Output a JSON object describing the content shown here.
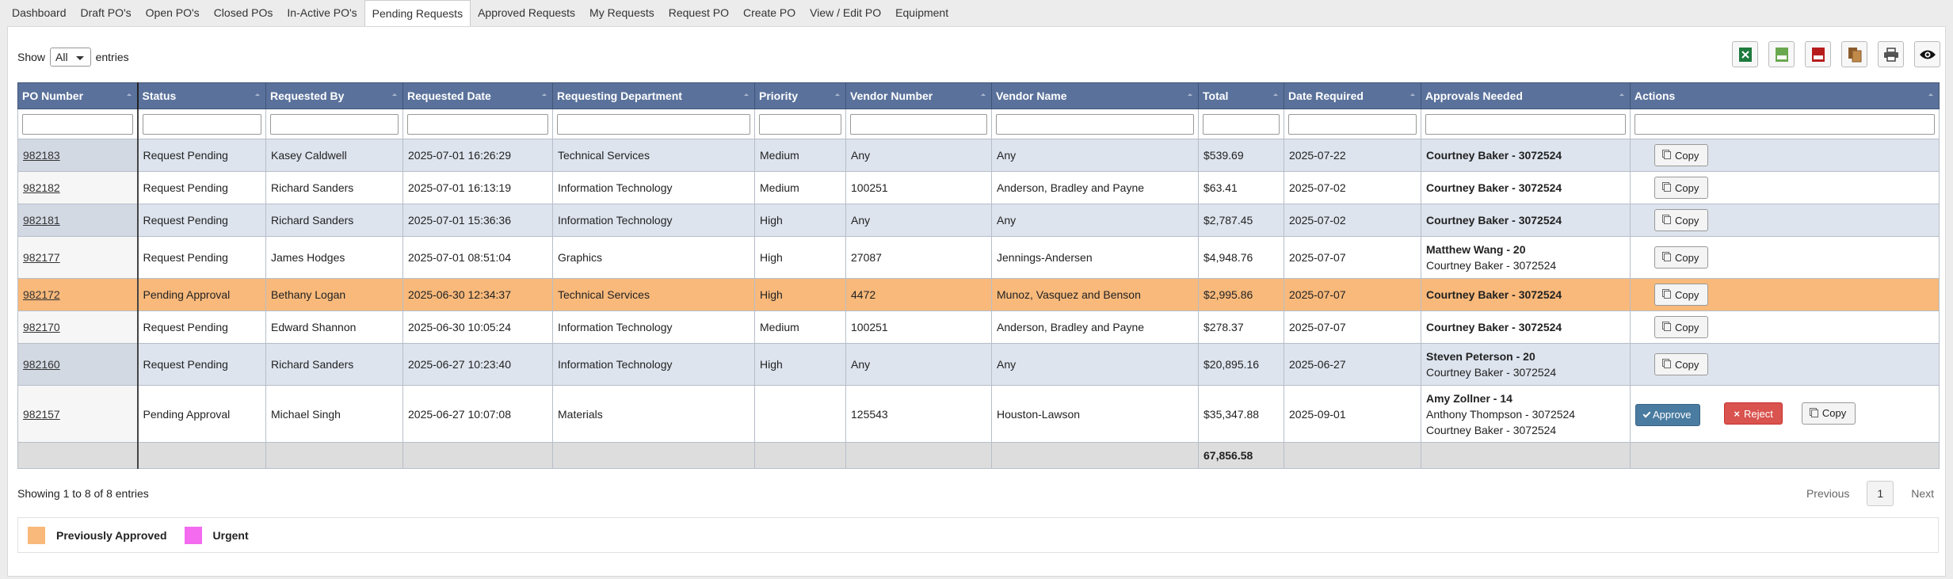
{
  "tabs": [
    "Dashboard",
    "Draft PO's",
    "Open PO's",
    "Closed POs",
    "In-Active PO's",
    "Pending Requests",
    "Approved Requests",
    "My Requests",
    "Request PO",
    "Create PO",
    "View / Edit PO",
    "Equipment"
  ],
  "active_tab": 5,
  "length_menu": {
    "prefix": "Show",
    "value": "All",
    "suffix": "entries"
  },
  "table": {
    "columns": [
      "PO Number",
      "Status",
      "Requested By",
      "Requested Date",
      "Requesting Department",
      "Priority",
      "Vendor Number",
      "Vendor Name",
      "Total",
      "Date Required",
      "Approvals Needed",
      "Actions"
    ],
    "rows": [
      {
        "cells": [
          "982183",
          "Request Pending",
          "Kasey Caldwell",
          "2025-07-01 16:26:29",
          "Technical Services",
          "Medium",
          "Any",
          "Any",
          "$539.69",
          "2025-07-22"
        ],
        "approvals": [
          {
            "text": "Courtney Baker - 3072524",
            "bold": true
          }
        ],
        "actions": [
          "Copy"
        ]
      },
      {
        "cells": [
          "982182",
          "Request Pending",
          "Richard Sanders",
          "2025-07-01 16:13:19",
          "Information Technology",
          "Medium",
          "100251",
          "Anderson, Bradley and Payne",
          "$63.41",
          "2025-07-02"
        ],
        "approvals": [
          {
            "text": "Courtney Baker - 3072524",
            "bold": true
          }
        ],
        "actions": [
          "Copy"
        ]
      },
      {
        "cells": [
          "982181",
          "Request Pending",
          "Richard Sanders",
          "2025-07-01 15:36:36",
          "Information Technology",
          "High",
          "Any",
          "Any",
          "$2,787.45",
          "2025-07-02"
        ],
        "approvals": [
          {
            "text": "Courtney Baker - 3072524",
            "bold": true
          }
        ],
        "actions": [
          "Copy"
        ]
      },
      {
        "cells": [
          "982177",
          "Request Pending",
          "James Hodges",
          "2025-07-01 08:51:04",
          "Graphics",
          "High",
          "27087",
          "Jennings-Andersen",
          "$4,948.76",
          "2025-07-07"
        ],
        "approvals": [
          {
            "text": "Matthew Wang - 20",
            "bold": true
          },
          {
            "text": "Courtney Baker - 3072524",
            "bold": false
          }
        ],
        "actions": [
          "Copy"
        ]
      },
      {
        "cells": [
          "982172",
          "Pending Approval",
          "Bethany Logan",
          "2025-06-30 12:34:37",
          "Technical Services",
          "High",
          "4472",
          "Munoz, Vasquez and Benson",
          "$2,995.86",
          "2025-07-07"
        ],
        "approvals": [
          {
            "text": "Courtney Baker - 3072524",
            "bold": true
          }
        ],
        "actions": [
          "Copy"
        ],
        "row_color": "#f8b97b"
      },
      {
        "cells": [
          "982170",
          "Request Pending",
          "Edward Shannon",
          "2025-06-30 10:05:24",
          "Information Technology",
          "Medium",
          "100251",
          "Anderson, Bradley and Payne",
          "$278.37",
          "2025-07-07"
        ],
        "approvals": [
          {
            "text": "Courtney Baker - 3072524",
            "bold": true
          }
        ],
        "actions": [
          "Copy"
        ]
      },
      {
        "cells": [
          "982160",
          "Request Pending",
          "Richard Sanders",
          "2025-06-27 10:23:40",
          "Information Technology",
          "High",
          "Any",
          "Any",
          "$20,895.16",
          "2025-06-27"
        ],
        "approvals": [
          {
            "text": "Steven Peterson - 20",
            "bold": true
          },
          {
            "text": "Courtney Baker - 3072524",
            "bold": false
          }
        ],
        "actions": [
          "Copy"
        ]
      },
      {
        "cells": [
          "982157",
          "Pending Approval",
          "Michael Singh",
          "2025-06-27 10:07:08",
          "Materials",
          null,
          "125543",
          "Houston-Lawson",
          "$35,347.88",
          "2025-09-01"
        ],
        "approvals": [
          {
            "text": "Amy Zollner - 14",
            "bold": true
          },
          {
            "text": "Anthony Thompson - 3072524",
            "bold": false
          },
          {
            "text": "Courtney Baker - 3072524",
            "bold": false
          }
        ],
        "actions": [
          "Approve",
          "Reject",
          "Copy"
        ]
      }
    ],
    "total": "67,856.58"
  },
  "info": "Showing 1 to 8 of 8 entries",
  "pagination": [
    "Previous",
    "1",
    "Next"
  ],
  "legend": [
    {
      "label": "Previously Approved",
      "color": "#f8b97b"
    },
    {
      "label": "Urgent",
      "color": "#f46bf0"
    }
  ]
}
